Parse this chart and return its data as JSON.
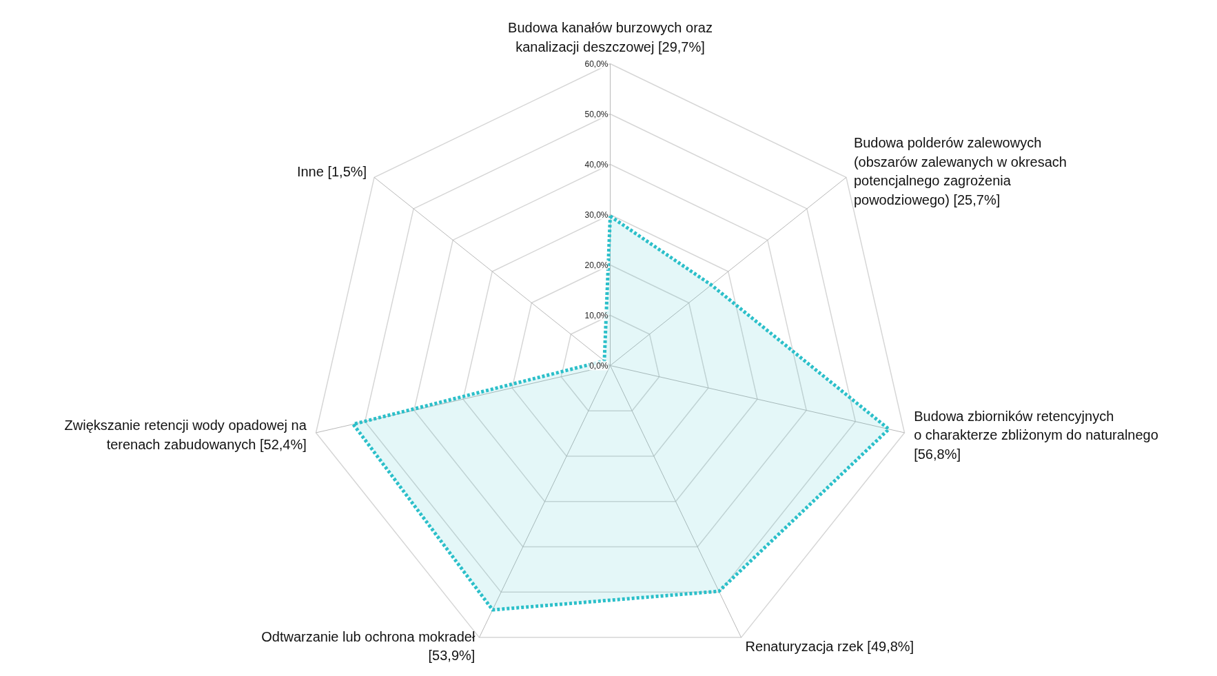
{
  "chart_data": {
    "type": "radar",
    "categories": [
      "Budowa kanałów burzowych oraz\nkanalizacji deszczowej [29,7%]",
      "Budowa polderów zalewowych\n(obszarów zalewanych w okresach\npotencjalnego zagrożenia\npowodziowego) [25,7%]",
      "Budowa zbiorników retencyjnych\no charakterze zbliżonym do naturalnego\n[56,8%]",
      "Renaturyzacja rzek [49,8%]",
      "Odtwarzanie lub ochrona mokradeł\n[53,9%]",
      "Zwiększanie retencji wody opadowej na\nterenach zabudowanych [52,4%]",
      "Inne [1,5%]"
    ],
    "series": [
      {
        "color": "#2bbfc9",
        "values": [
          29.7,
          25.7,
          56.8,
          49.8,
          53.9,
          52.4,
          1.5
        ]
      }
    ],
    "ylim": [
      0,
      60
    ],
    "yticks": [
      {
        "value": 0,
        "label": "0,0%"
      },
      {
        "value": 10,
        "label": "10,0%"
      },
      {
        "value": 20,
        "label": "20,0%"
      },
      {
        "value": 30,
        "label": "30,0%"
      },
      {
        "value": 40,
        "label": "40,0%"
      },
      {
        "value": 50,
        "label": "50,0%"
      },
      {
        "value": 60,
        "label": "60,0%"
      }
    ],
    "grid": true,
    "marker": "none",
    "line_style": "dotted"
  }
}
